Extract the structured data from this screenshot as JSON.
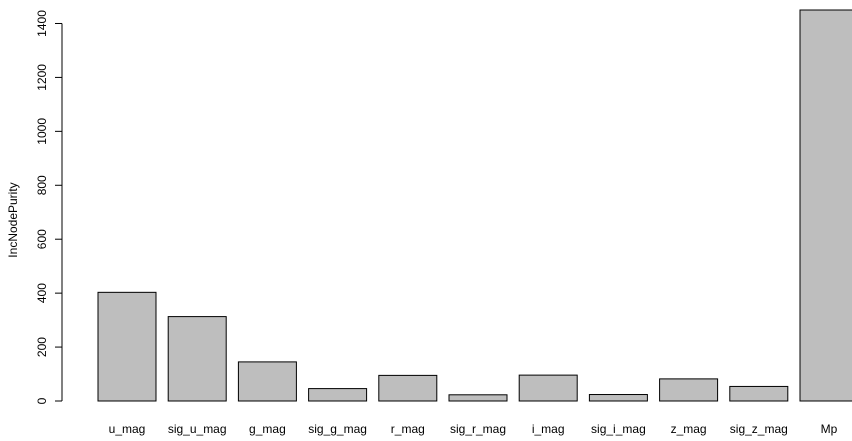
{
  "chart_data": {
    "type": "bar",
    "ylabel": "IncNodePurity",
    "categories": [
      "u_mag",
      "sig_u_mag",
      "g_mag",
      "sig_g_mag",
      "r_mag",
      "sig_r_mag",
      "i_mag",
      "sig_i_mag",
      "z_mag",
      "sig_z_mag",
      "Mp"
    ],
    "values": [
      403,
      313,
      145,
      46,
      95,
      23,
      96,
      24,
      82,
      54,
      1450
    ],
    "yticks": [
      0,
      200,
      400,
      600,
      800,
      1000,
      1200,
      1400
    ],
    "ylim": [
      0,
      1450
    ],
    "bar_color": "#bebebe",
    "bar_border_color": "#000000",
    "grid": false,
    "legend": "none"
  }
}
